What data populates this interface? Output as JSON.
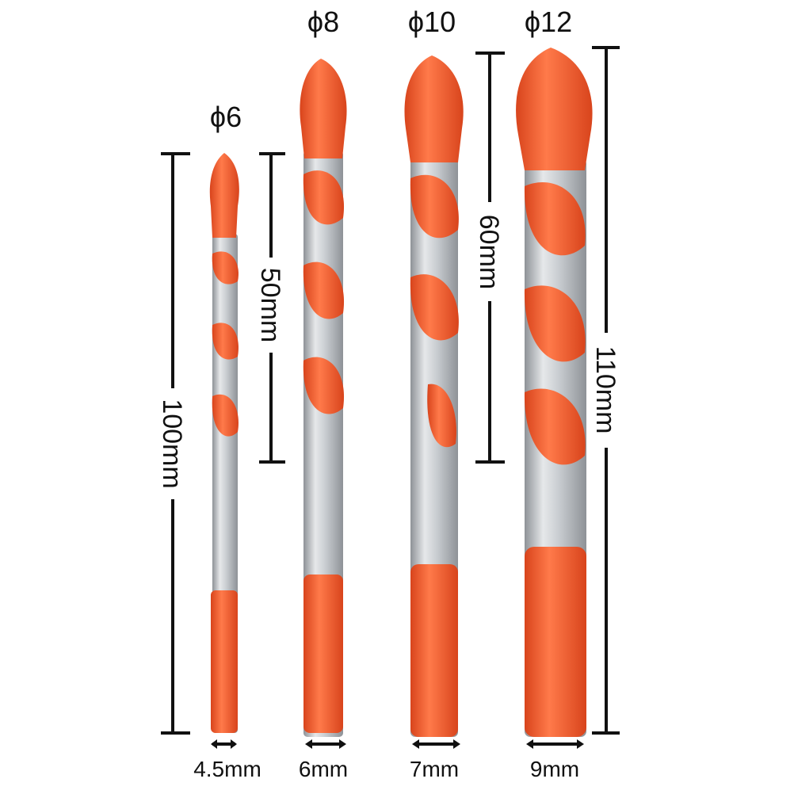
{
  "product": {
    "bits": [
      {
        "diameter_label": "ϕ6",
        "shank_label": "4.5mm"
      },
      {
        "diameter_label": "ϕ8",
        "shank_label": "6mm"
      },
      {
        "diameter_label": "ϕ10",
        "shank_label": "7mm"
      },
      {
        "diameter_label": "ϕ12",
        "shank_label": "9mm"
      }
    ],
    "dimensions": {
      "length_small": "100mm",
      "flute_small": "50mm",
      "flute_large": "60mm",
      "length_large": "110mm"
    },
    "colors": {
      "accent": "#F0582A",
      "accent_dark": "#C8401A",
      "steel_light": "#E6E8EA",
      "steel_mid": "#B8BCC0",
      "steel_dark": "#8E9297"
    }
  }
}
